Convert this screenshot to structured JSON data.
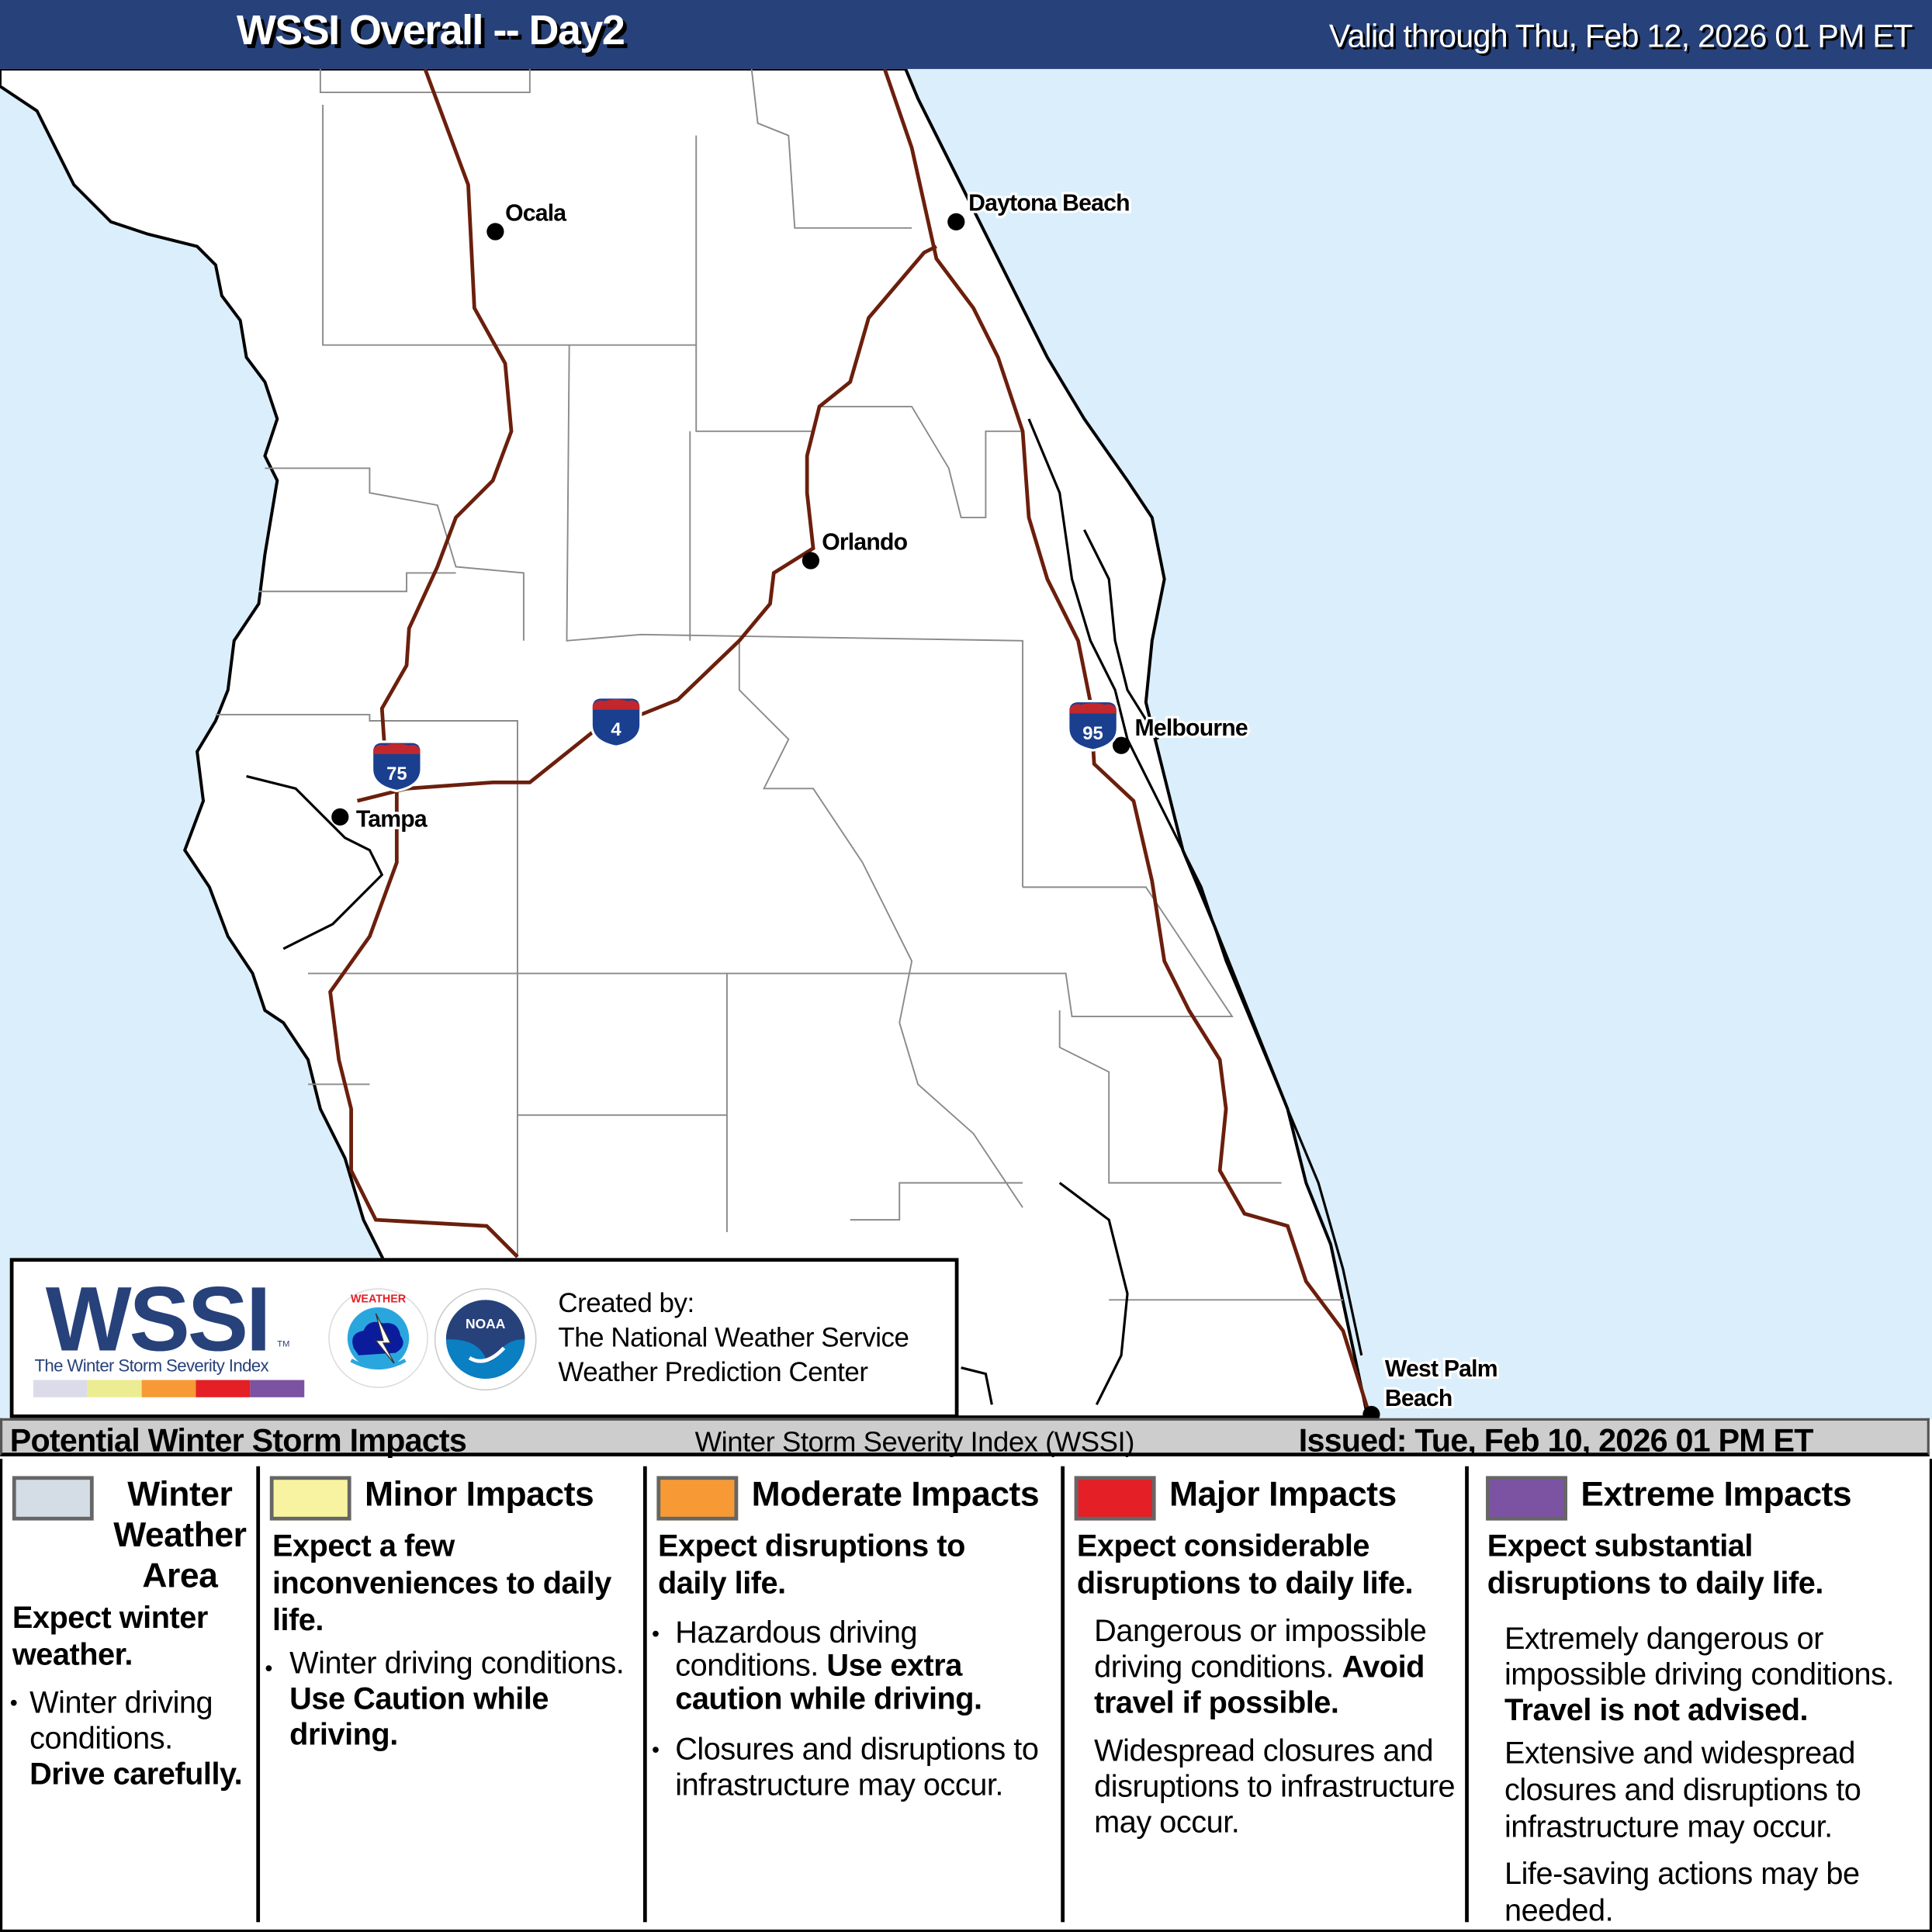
{
  "header": {
    "title": "WSSI Overall -- Day2",
    "valid": "Valid through Thu, Feb 12, 2026 01 PM ET"
  },
  "map": {
    "colors": {
      "ocean": "#dbeefb",
      "land": "#ffffff",
      "interstate": "#6b1f0c",
      "county_line": "#8a8a8a"
    },
    "cities": [
      {
        "name": "Ocala"
      },
      {
        "name": "Daytona Beach"
      },
      {
        "name": "Orlando"
      },
      {
        "name": "Melbourne"
      },
      {
        "name": "Tampa"
      },
      {
        "name": "West Palm",
        "name2": "Beach"
      }
    ],
    "interstates": [
      {
        "number": "75"
      },
      {
        "number": "4"
      },
      {
        "number": "95"
      }
    ]
  },
  "logo_box": {
    "wssi": "WSSI",
    "tm": "TM",
    "wssi_subtitle": "The Winter Storm Severity Index",
    "scale_colors": [
      "#dcdbe9",
      "#ecec92",
      "#f79a35",
      "#e41f26",
      "#7b53a2"
    ],
    "created_by": "Created by:",
    "org1": "The National Weather Service",
    "org2": "Weather Prediction Center",
    "nws_logo_text": "NATIONAL WEATHER SERVICE",
    "noaa_logo_text": "NOAA"
  },
  "info_bar": {
    "left": "Potential Winter Storm Impacts",
    "middle": "Winter Storm Severity Index (WSSI)",
    "issued": "Issued: Tue, Feb 10, 2026 01 PM ET"
  },
  "legend": [
    {
      "title": "Winter Weather Area",
      "color": "#d4dde6",
      "summary": "Expect winter weather.",
      "details": [
        "Winter driving conditions.",
        "Drive carefully."
      ]
    },
    {
      "title": "Minor Impacts",
      "color": "#f7f3a0",
      "summary": "Expect a few inconveniences to daily life.",
      "details": [
        "Winter driving conditions.",
        "Use Caution while driving."
      ]
    },
    {
      "title": "Moderate Impacts",
      "color": "#f79a35",
      "summary": "Expect disruptions to daily life.",
      "details": [
        "Hazardous driving conditions.",
        "Use extra caution while driving.",
        "Closures and disruptions to infrastructure may occur."
      ]
    },
    {
      "title": "Major Impacts",
      "color": "#e41f26",
      "summary": "Expect considerable disruptions to daily life.",
      "details": [
        "Dangerous or impossible driving conditions.",
        "Avoid travel if possible.",
        "Widespread closures and disruptions to infrastructure may occur."
      ]
    },
    {
      "title": "Extreme Impacts",
      "color": "#7b53a2",
      "summary": "Expect substantial disruptions to daily life.",
      "details": [
        "Extremely dangerous or impossible driving conditions.",
        "Travel is not advised.",
        "Extensive and widespread closures and disruptions to infrastructure may occur.",
        "Life-saving actions may be needed."
      ]
    }
  ]
}
